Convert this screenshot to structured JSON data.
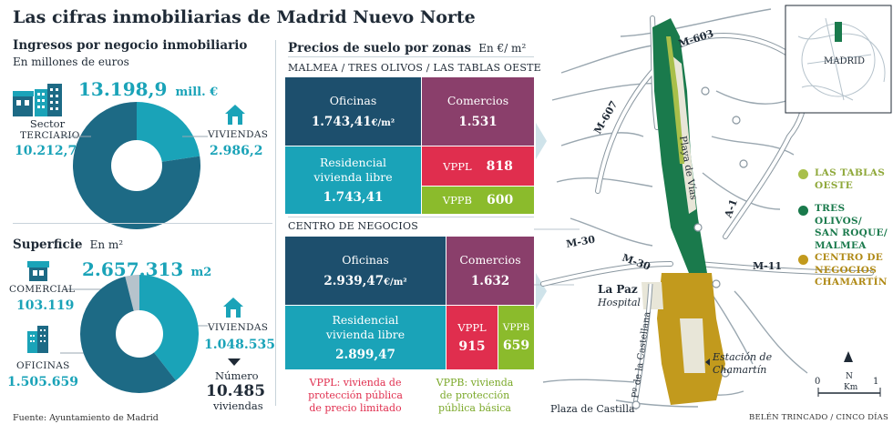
{
  "title": "Las cifras inmobiliarias de Madrid Nuevo Norte",
  "ingresos": {
    "title": "Ingresos por negocio inmobiliario",
    "subtitle": "En millones de euros",
    "total_value": "13.198,9",
    "total_unit": "mill. €",
    "sector_label_1": "Sector",
    "sector_label_2": "TERCIARIO",
    "sector_value": "10.212,7",
    "viviendas_label": "VIVIENDAS",
    "viviendas_value": "2.986,2",
    "chart_data": {
      "type": "pie",
      "title": "Ingresos por negocio inmobiliario",
      "unit": "millones de euros",
      "categories": [
        "Sector terciario",
        "Viviendas"
      ],
      "values": [
        10212.7,
        2986.2
      ],
      "colors": [
        "#1d6a85",
        "#1aa3b8"
      ]
    }
  },
  "superficie": {
    "title": "Superficie",
    "unit": "En m²",
    "total_value": "2.657.313",
    "total_unit": "m2",
    "comercial_label": "COMERCIAL",
    "comercial_value": "103.119",
    "oficinas_label": "OFICINAS",
    "oficinas_value": "1.505.659",
    "viviendas_label": "VIVIENDAS",
    "viviendas_value": "1.048.535",
    "numero_label": "Número",
    "numero_value": "10.485",
    "numero_unit": "viviendas",
    "chart_data": {
      "type": "pie",
      "title": "Superficie",
      "unit": "m2",
      "categories": [
        "Comercial",
        "Viviendas",
        "Oficinas"
      ],
      "values": [
        103119,
        1048535,
        1505659
      ],
      "colors": [
        "#b6c3cc",
        "#1aa3b8",
        "#1d6a85"
      ]
    }
  },
  "precios": {
    "title": "Precios de suelo por zonas",
    "unit": "En €/ m²",
    "zone1": {
      "name": "MALMEA / TRES OLIVOS / LAS TABLAS OESTE",
      "oficinas_label": "Oficinas",
      "oficinas_value": "1.743,41",
      "oficinas_unit": "€/m²",
      "comercios_label": "Comercios",
      "comercios_value": "1.531",
      "residencial_label_1": "Residencial",
      "residencial_label_2": "vivienda libre",
      "residencial_value": "1.743,41",
      "vppl_label": "VPPL",
      "vppl_value": "818",
      "vppb_label": "VPPB",
      "vppb_value": "600"
    },
    "zone2": {
      "name": "CENTRO DE NEGOCIOS",
      "oficinas_label": "Oficinas",
      "oficinas_value": "2.939,47",
      "oficinas_unit": "€/m²",
      "comercios_label": "Comercios",
      "comercios_value": "1.632",
      "residencial_label_1": "Residencial",
      "residencial_label_2": "vivienda libre",
      "residencial_value": "2.899,47",
      "vppl_label": "VPPL",
      "vppl_value": "915",
      "vppb_label": "VPPB",
      "vppb_value": "659"
    },
    "note_vppl": [
      "VPPL: vivienda de",
      "protección pública",
      "de precio limitado"
    ],
    "note_vppb": [
      "VPPB: vivienda",
      "de protección",
      "pública básica"
    ]
  },
  "map": {
    "roads": [
      "M-603",
      "M-607",
      "M-30",
      "M-30",
      "M-11",
      "A-1"
    ],
    "playa_vias": "Playa de Vías",
    "la_paz": "La Paz",
    "hospital": "Hospital",
    "castellana": "Pº de la Castellana",
    "estacion_1": "Estación de",
    "estacion_2": "Chamartín",
    "plaza": "Plaza de Castilla",
    "inset_label": "MADRID",
    "scale_0": "0",
    "scale_1": "1",
    "scale_km": "Km",
    "north": "N",
    "legend": [
      {
        "lines": [
          "LAS TABLAS",
          "OESTE"
        ],
        "color": "#a8bf4a"
      },
      {
        "lines": [
          "TRES OLIVOS/",
          "SAN ROQUE/",
          "MALMEA"
        ],
        "color": "#1a7a4c"
      },
      {
        "lines": [
          "CENTRO DE",
          "NEGOCIOS",
          "CHAMARTÍN"
        ],
        "color": "#c29a1d"
      }
    ]
  },
  "footer": {
    "source": "Fuente: Ayuntamiento de Madrid",
    "credit": "BELÉN TRINCADO / CINCO DÍAS"
  },
  "colors": {
    "dark_blue": "#1d4f6d",
    "teal": "#1aa3b8",
    "purple": "#8a3f6b",
    "red": "#e02e4e",
    "green": "#8bbb2c"
  }
}
